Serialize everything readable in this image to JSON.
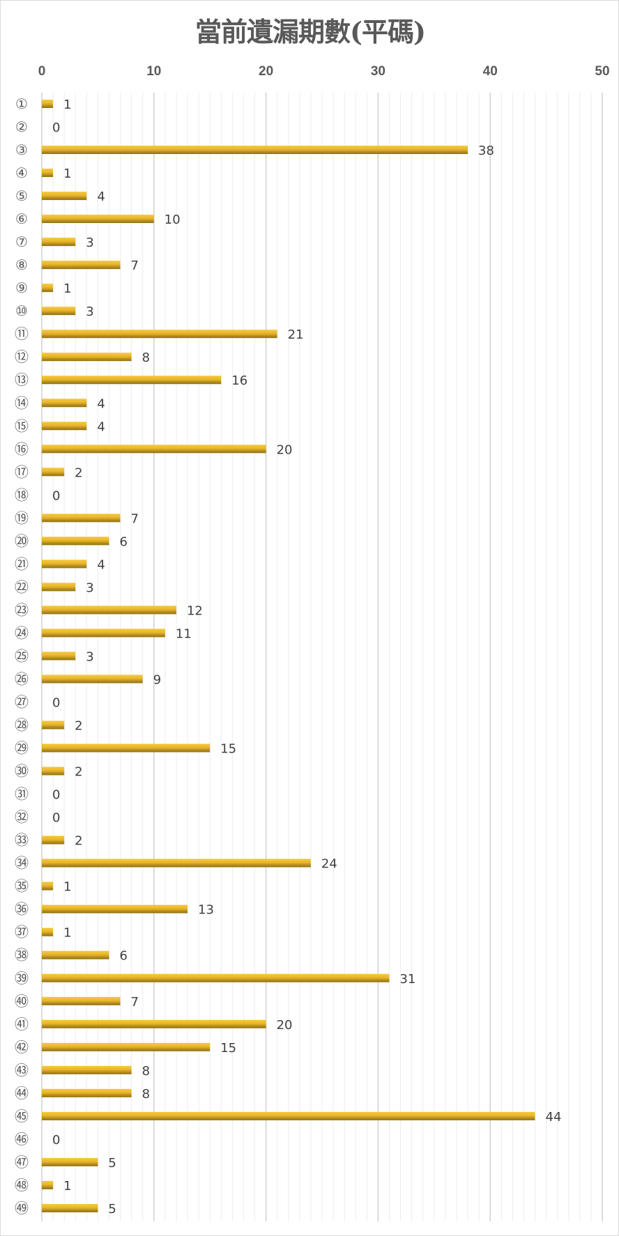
{
  "chart_data": {
    "type": "bar",
    "orientation": "horizontal",
    "title": "當前遺漏期數(平碼)",
    "xlabel": "",
    "ylabel": "",
    "xlim": [
      0,
      50
    ],
    "x_ticks": [
      0,
      10,
      20,
      30,
      40,
      50
    ],
    "x_axis_position": "top",
    "grid": {
      "major": true,
      "minor": true
    },
    "categories": [
      "①",
      "②",
      "③",
      "④",
      "⑤",
      "⑥",
      "⑦",
      "⑧",
      "⑨",
      "⑩",
      "⑪",
      "⑫",
      "⑬",
      "⑭",
      "⑮",
      "⑯",
      "⑰",
      "⑱",
      "⑲",
      "⑳",
      "㉑",
      "㉒",
      "㉓",
      "㉔",
      "㉕",
      "㉖",
      "㉗",
      "㉘",
      "㉙",
      "㉚",
      "㉛",
      "㉜",
      "㉝",
      "㉞",
      "㉟",
      "㊱",
      "㊲",
      "㊳",
      "㊴",
      "㊵",
      "㊶",
      "㊷",
      "㊸",
      "㊹",
      "㊺",
      "㊻",
      "㊼",
      "㊽",
      "㊾"
    ],
    "values": [
      1,
      0,
      38,
      1,
      4,
      10,
      3,
      7,
      1,
      3,
      21,
      8,
      16,
      4,
      4,
      20,
      2,
      0,
      7,
      6,
      4,
      3,
      12,
      11,
      3,
      9,
      0,
      2,
      15,
      2,
      0,
      0,
      2,
      24,
      1,
      13,
      1,
      6,
      31,
      7,
      20,
      15,
      8,
      8,
      44,
      0,
      5,
      1,
      5
    ],
    "data_labels": true,
    "colors": {
      "bar_top": "#f7c93e",
      "bar_bottom": "#8c6d12"
    }
  }
}
